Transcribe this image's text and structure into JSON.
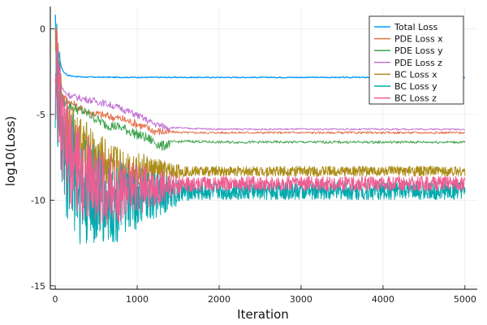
{
  "chart_data": {
    "type": "line",
    "title": "",
    "xlabel": "Iteration",
    "ylabel": "log10(Loss)",
    "xlim": [
      -60,
      5150
    ],
    "ylim": [
      -15.2,
      1.3
    ],
    "xticks": [
      0,
      1000,
      2000,
      3000,
      4000,
      5000
    ],
    "yticks": [
      0,
      -5,
      -10,
      -15
    ],
    "grid": true,
    "legend_position": "top-right",
    "series": [
      {
        "name": "Total Loss",
        "color": "#009AFA",
        "points": [
          [
            0,
            0.8
          ],
          [
            10,
            -0.4
          ],
          [
            20,
            -0.9
          ],
          [
            40,
            -1.4
          ],
          [
            60,
            -1.9
          ],
          [
            80,
            -2.3
          ],
          [
            100,
            -2.5
          ],
          [
            150,
            -2.7
          ],
          [
            200,
            -2.75
          ],
          [
            300,
            -2.8
          ],
          [
            500,
            -2.82
          ],
          [
            1000,
            -2.83
          ],
          [
            2000,
            -2.83
          ],
          [
            3000,
            -2.83
          ],
          [
            4000,
            -2.83
          ],
          [
            5000,
            -2.83
          ]
        ]
      },
      {
        "name": "PDE Loss x",
        "color": "#E36F47",
        "points": [
          [
            0,
            0.3
          ],
          [
            20,
            -1.5
          ],
          [
            40,
            -2.8
          ],
          [
            60,
            -3.4
          ],
          [
            100,
            -3.9
          ],
          [
            200,
            -4.3
          ],
          [
            300,
            -4.6
          ],
          [
            400,
            -4.8
          ],
          [
            600,
            -5.0
          ],
          [
            800,
            -5.2
          ],
          [
            1000,
            -5.5
          ],
          [
            1200,
            -5.9
          ],
          [
            1400,
            -6.0
          ],
          [
            1600,
            -6.05
          ],
          [
            2000,
            -6.05
          ],
          [
            3000,
            -6.05
          ],
          [
            4000,
            -6.05
          ],
          [
            5000,
            -6.05
          ]
        ]
      },
      {
        "name": "PDE Loss y",
        "color": "#3EA44E",
        "points": [
          [
            0,
            0.2
          ],
          [
            20,
            -2.0
          ],
          [
            50,
            -3.3
          ],
          [
            100,
            -4.2
          ],
          [
            200,
            -4.5
          ],
          [
            300,
            -4.7
          ],
          [
            400,
            -4.9
          ],
          [
            600,
            -5.5
          ],
          [
            800,
            -5.7
          ],
          [
            1000,
            -6.1
          ],
          [
            1200,
            -6.5
          ],
          [
            1300,
            -6.8
          ],
          [
            1400,
            -6.6
          ],
          [
            1600,
            -6.55
          ],
          [
            2000,
            -6.6
          ],
          [
            3000,
            -6.6
          ],
          [
            4000,
            -6.6
          ],
          [
            5000,
            -6.6
          ]
        ]
      },
      {
        "name": "PDE Loss z",
        "color": "#C271D2",
        "points": [
          [
            0,
            0.1
          ],
          [
            30,
            -2.0
          ],
          [
            60,
            -3.0
          ],
          [
            100,
            -3.6
          ],
          [
            200,
            -3.9
          ],
          [
            400,
            -4.1
          ],
          [
            600,
            -4.3
          ],
          [
            800,
            -4.6
          ],
          [
            1000,
            -5.0
          ],
          [
            1200,
            -5.5
          ],
          [
            1400,
            -5.75
          ],
          [
            1600,
            -5.8
          ],
          [
            2000,
            -5.85
          ],
          [
            3000,
            -5.85
          ],
          [
            4000,
            -5.85
          ],
          [
            5000,
            -5.85
          ]
        ]
      },
      {
        "name": "BC Loss x",
        "color": "#AC8D18",
        "points": [
          [
            0,
            -1.0
          ],
          [
            100,
            -5.5
          ],
          [
            300,
            -6.5
          ],
          [
            500,
            -7.3
          ],
          [
            700,
            -7.8
          ],
          [
            1000,
            -8.0
          ],
          [
            1300,
            -8.2
          ],
          [
            1600,
            -8.25
          ],
          [
            2000,
            -8.25
          ],
          [
            3000,
            -8.25
          ],
          [
            4000,
            -8.25
          ],
          [
            5000,
            -8.25
          ]
        ]
      },
      {
        "name": "BC Loss y",
        "color": "#00A9AD",
        "points": [
          [
            0,
            -1.5
          ],
          [
            100,
            -6.5
          ],
          [
            300,
            -8.5
          ],
          [
            500,
            -9.3
          ],
          [
            700,
            -9.6
          ],
          [
            1000,
            -9.5
          ],
          [
            1300,
            -9.4
          ],
          [
            1600,
            -9.4
          ],
          [
            2000,
            -9.35
          ],
          [
            3000,
            -9.35
          ],
          [
            4000,
            -9.35
          ],
          [
            5000,
            -9.35
          ]
        ]
      },
      {
        "name": "BC Loss z",
        "color": "#ED5D92",
        "points": [
          [
            0,
            -1.2
          ],
          [
            100,
            -6.2
          ],
          [
            300,
            -7.8
          ],
          [
            500,
            -8.6
          ],
          [
            700,
            -9.0
          ],
          [
            1000,
            -9.1
          ],
          [
            1300,
            -9.0
          ],
          [
            1600,
            -9.0
          ],
          [
            2000,
            -8.95
          ],
          [
            3000,
            -8.95
          ],
          [
            4000,
            -8.95
          ],
          [
            5000,
            -8.95
          ]
        ]
      }
    ]
  }
}
